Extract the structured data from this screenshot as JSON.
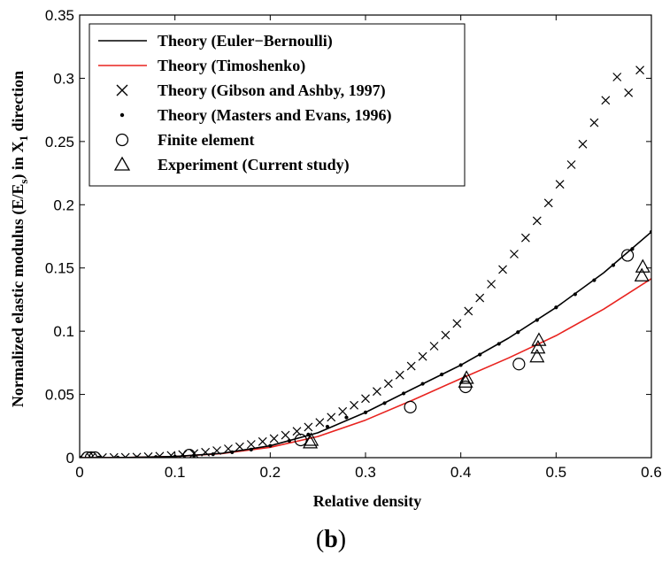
{
  "chart_data": {
    "type": "line",
    "xlabel": "Relative density",
    "ylabel_main": "Normalized elastic modulus (E/E",
    "ylabel_sub1": "s",
    "ylabel_mid": ") in X",
    "ylabel_sub2": "1",
    "ylabel_end": " direction",
    "panel_label_open": "(",
    "panel_label_letter": "b",
    "panel_label_close": ")",
    "xlim": [
      0,
      0.6
    ],
    "ylim": [
      0,
      0.35
    ],
    "x_ticks": [
      0,
      0.1,
      0.2,
      0.3,
      0.4,
      0.5,
      0.6
    ],
    "x_tick_labels": [
      "0",
      "0.1",
      "0.2",
      "0.3",
      "0.4",
      "0.5",
      "0.6"
    ],
    "y_ticks": [
      0,
      0.05,
      0.1,
      0.15,
      0.2,
      0.25,
      0.3,
      0.35
    ],
    "y_tick_labels": [
      "0",
      "0.05",
      "0.1",
      "0.15",
      "0.2",
      "0.25",
      "0.3",
      "0.35"
    ],
    "legend_position": "top-left",
    "colors": {
      "euler": "#000000",
      "timoshenko": "#e8231f",
      "markers": "#000000"
    },
    "series": [
      {
        "name": "Theory (Euler−Bernoulli)",
        "kind": "line",
        "color": "#000000",
        "x": [
          0.0,
          0.05,
          0.1,
          0.15,
          0.2,
          0.25,
          0.3,
          0.35,
          0.4,
          0.45,
          0.5,
          0.55,
          0.6
        ],
        "y": [
          0.0,
          0.0001,
          0.0009,
          0.0035,
          0.0094,
          0.0197,
          0.0358,
          0.0546,
          0.0732,
          0.0945,
          0.1188,
          0.1462,
          0.1785
        ]
      },
      {
        "name": "Theory (Timoshenko)",
        "kind": "line",
        "color": "#e8231f",
        "x": [
          0.0,
          0.05,
          0.1,
          0.15,
          0.2,
          0.25,
          0.3,
          0.35,
          0.4,
          0.45,
          0.5,
          0.55,
          0.6
        ],
        "y": [
          0.0,
          0.0001,
          0.0009,
          0.0033,
          0.0082,
          0.0167,
          0.0297,
          0.0457,
          0.0625,
          0.0788,
          0.0965,
          0.1175,
          0.1415
        ]
      },
      {
        "name": "Theory (Gibson and Ashby, 1997)",
        "kind": "marker",
        "marker": "x",
        "x": [
          0.0,
          0.012,
          0.024,
          0.036,
          0.048,
          0.06,
          0.072,
          0.084,
          0.096,
          0.108,
          0.12,
          0.132,
          0.144,
          0.156,
          0.168,
          0.18,
          0.192,
          0.204,
          0.216,
          0.228,
          0.24,
          0.252,
          0.264,
          0.276,
          0.288,
          0.3,
          0.312,
          0.324,
          0.336,
          0.348,
          0.36,
          0.372,
          0.384,
          0.396,
          0.408,
          0.42,
          0.432,
          0.444,
          0.456,
          0.468,
          0.48,
          0.492,
          0.504,
          0.516,
          0.528,
          0.54,
          0.552,
          0.564,
          0.576,
          0.588
        ],
        "y": [
          0.0,
          0.0,
          0.0001,
          0.0002,
          0.0003,
          0.0005,
          0.0008,
          0.0012,
          0.0018,
          0.0025,
          0.0033,
          0.0043,
          0.0056,
          0.007,
          0.0086,
          0.0105,
          0.0127,
          0.0151,
          0.0178,
          0.0209,
          0.0242,
          0.0279,
          0.032,
          0.0365,
          0.0414,
          0.0467,
          0.0524,
          0.0586,
          0.0653,
          0.0724,
          0.08,
          0.0882,
          0.0969,
          0.1061,
          0.1159,
          0.1263,
          0.1372,
          0.1488,
          0.161,
          0.1738,
          0.1873,
          0.2014,
          0.2162,
          0.2317,
          0.2479,
          0.2649,
          0.2826,
          0.301,
          0.2885,
          0.3065
        ]
      },
      {
        "name": "Theory (Masters and Evans, 1996)",
        "kind": "marker",
        "marker": "dot",
        "x": [
          0.0,
          0.02,
          0.04,
          0.06,
          0.08,
          0.1,
          0.12,
          0.14,
          0.16,
          0.18,
          0.2,
          0.22,
          0.24,
          0.26,
          0.28,
          0.3,
          0.32,
          0.34,
          0.36,
          0.38,
          0.4,
          0.42,
          0.44,
          0.46,
          0.48,
          0.5,
          0.52,
          0.54,
          0.56,
          0.58,
          0.6
        ],
        "y": [
          0.0,
          0.0,
          0.0001,
          0.0002,
          0.0005,
          0.0009,
          0.0016,
          0.0027,
          0.0043,
          0.0064,
          0.0094,
          0.0133,
          0.0183,
          0.0245,
          0.0318,
          0.0358,
          0.0431,
          0.0508,
          0.0584,
          0.0658,
          0.0732,
          0.0815,
          0.09,
          0.0992,
          0.1088,
          0.1188,
          0.1292,
          0.1403,
          0.1522,
          0.165,
          0.1785
        ]
      },
      {
        "name": "Finite element",
        "kind": "marker",
        "marker": "circle",
        "x": [
          0.008,
          0.012,
          0.016,
          0.115,
          0.232,
          0.347,
          0.405,
          0.461,
          0.575
        ],
        "y": [
          0.0,
          0.0,
          0.0,
          0.002,
          0.014,
          0.04,
          0.056,
          0.074,
          0.16
        ]
      },
      {
        "name": "Experiment (Current study)",
        "kind": "marker",
        "marker": "triangle",
        "x": [
          0.242,
          0.243,
          0.405,
          0.406,
          0.48,
          0.481,
          0.482,
          0.59,
          0.591
        ],
        "y": [
          0.012,
          0.014,
          0.06,
          0.063,
          0.08,
          0.087,
          0.093,
          0.144,
          0.151
        ]
      }
    ]
  }
}
